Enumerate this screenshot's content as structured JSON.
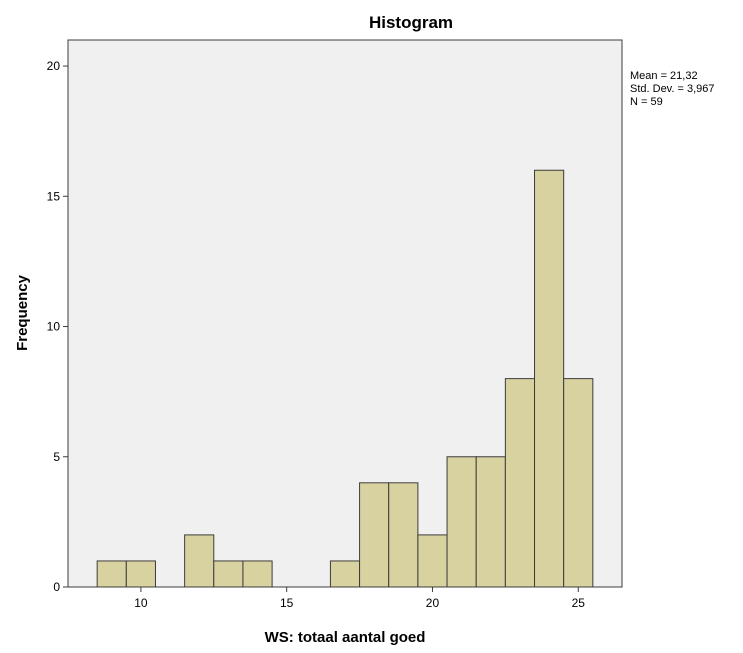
{
  "chart_data": {
    "type": "bar",
    "title": "Histogram",
    "xlabel": "WS: totaal aantal goed",
    "ylabel": "Frequency",
    "xlim": [
      7.5,
      26.5
    ],
    "ylim": [
      0,
      21
    ],
    "xticks": [
      10,
      15,
      20,
      25
    ],
    "yticks": [
      0,
      5,
      10,
      15,
      20
    ],
    "bin_width": 1,
    "bins": [
      {
        "center": 9,
        "count": 1
      },
      {
        "center": 10,
        "count": 1
      },
      {
        "center": 12,
        "count": 2
      },
      {
        "center": 13,
        "count": 1
      },
      {
        "center": 14,
        "count": 1
      },
      {
        "center": 17,
        "count": 1
      },
      {
        "center": 18,
        "count": 4
      },
      {
        "center": 19,
        "count": 4
      },
      {
        "center": 20,
        "count": 2
      },
      {
        "center": 21,
        "count": 5
      },
      {
        "center": 22,
        "count": 5
      },
      {
        "center": 23,
        "count": 8
      },
      {
        "center": 24,
        "count": 16
      },
      {
        "center": 25,
        "count": 8
      }
    ],
    "stats": [
      "Mean = 21,32",
      "Std. Dev. = 3,967",
      "N = 59"
    ],
    "grid": false,
    "bar_color": "#d8d2a0",
    "plot_background": "#f0f0f0",
    "edge_color": "#3c3c3c"
  }
}
